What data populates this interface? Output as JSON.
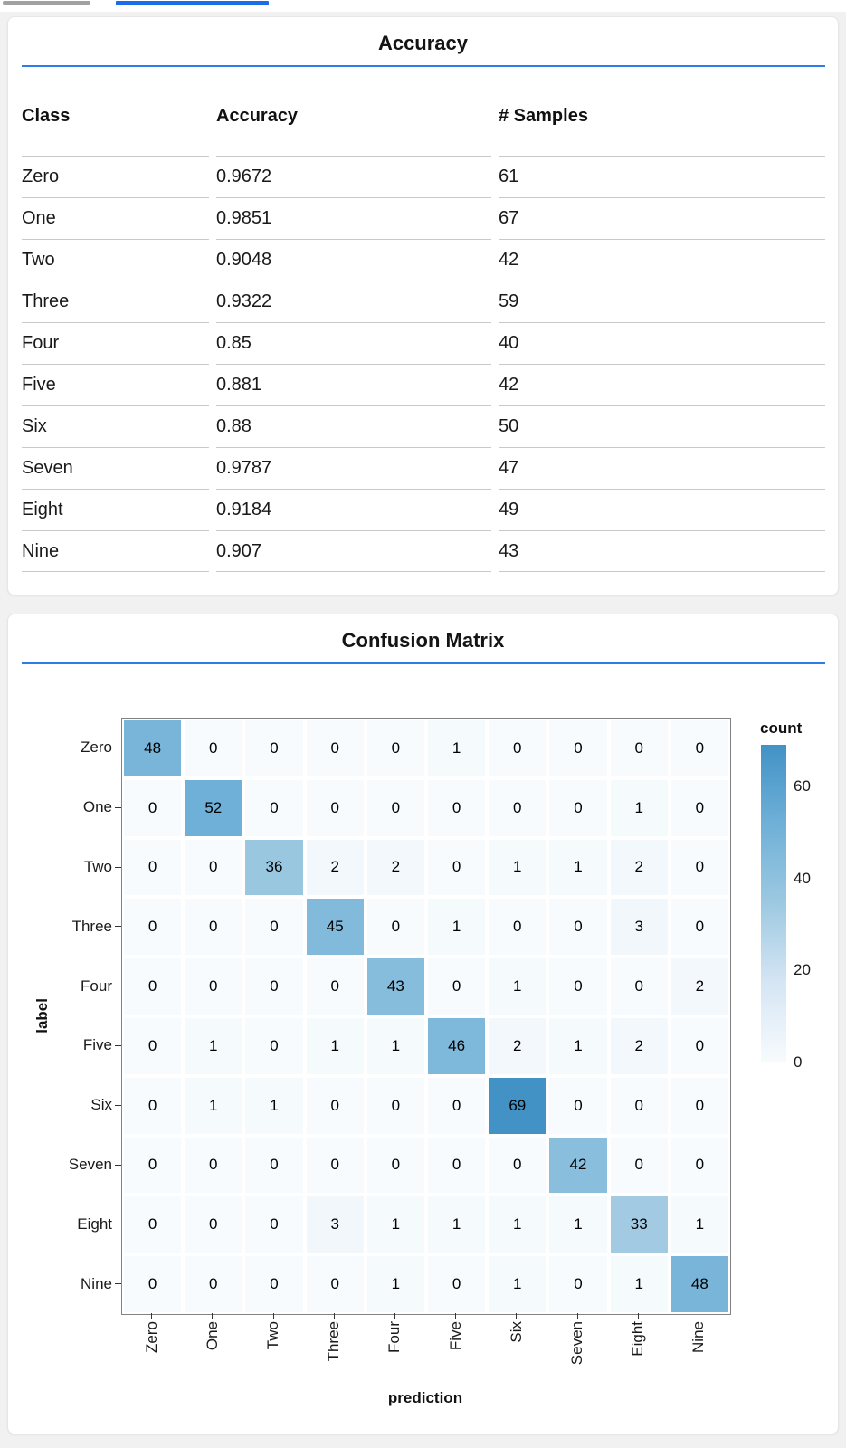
{
  "page": {
    "background": "#f2f1f1",
    "card_background": "#ffffff"
  },
  "accent": {
    "rule_color": "#2e7de5"
  },
  "top_bar": {
    "scrollbar_color": "#a1a1a1",
    "active_tab_color": "#1a6ce8"
  },
  "chart_data": [
    {
      "type": "table",
      "title": "Accuracy",
      "columns": [
        "Class",
        "Accuracy",
        "# Samples"
      ],
      "rows": [
        [
          "Zero",
          "0.9672",
          "61"
        ],
        [
          "One",
          "0.9851",
          "67"
        ],
        [
          "Two",
          "0.9048",
          "42"
        ],
        [
          "Three",
          "0.9322",
          "59"
        ],
        [
          "Four",
          "0.85",
          "40"
        ],
        [
          "Five",
          "0.881",
          "42"
        ],
        [
          "Six",
          "0.88",
          "50"
        ],
        [
          "Seven",
          "0.9787",
          "47"
        ],
        [
          "Eight",
          "0.9184",
          "49"
        ],
        [
          "Nine",
          "0.907",
          "43"
        ]
      ]
    },
    {
      "type": "heatmap",
      "title": "Confusion Matrix",
      "xlabel": "prediction",
      "ylabel": "label",
      "x_categories": [
        "Zero",
        "One",
        "Two",
        "Three",
        "Four",
        "Five",
        "Six",
        "Seven",
        "Eight",
        "Nine"
      ],
      "y_categories": [
        "Zero",
        "One",
        "Two",
        "Three",
        "Four",
        "Five",
        "Six",
        "Seven",
        "Eight",
        "Nine"
      ],
      "matrix": [
        [
          48,
          0,
          0,
          0,
          0,
          1,
          0,
          0,
          0,
          0
        ],
        [
          0,
          52,
          0,
          0,
          0,
          0,
          0,
          0,
          1,
          0
        ],
        [
          0,
          0,
          36,
          2,
          2,
          0,
          1,
          1,
          2,
          0
        ],
        [
          0,
          0,
          0,
          45,
          0,
          1,
          0,
          0,
          3,
          0
        ],
        [
          0,
          0,
          0,
          0,
          43,
          0,
          1,
          0,
          0,
          2
        ],
        [
          0,
          1,
          0,
          1,
          1,
          46,
          2,
          1,
          2,
          0
        ],
        [
          0,
          1,
          1,
          0,
          0,
          0,
          69,
          0,
          0,
          0
        ],
        [
          0,
          0,
          0,
          0,
          0,
          0,
          0,
          42,
          0,
          0
        ],
        [
          0,
          0,
          0,
          3,
          1,
          1,
          1,
          1,
          33,
          1
        ],
        [
          0,
          0,
          0,
          0,
          1,
          0,
          1,
          0,
          1,
          48
        ]
      ],
      "legend": {
        "title": "count",
        "ticks": [
          0,
          20,
          40,
          60
        ],
        "domain": [
          0,
          69
        ],
        "position": "right"
      },
      "color_scale": {
        "scheme": "blues",
        "stops": [
          "#f7fbfd",
          "#d5e5f4",
          "#9dc9e1",
          "#6fb0d7",
          "#4292c6"
        ]
      },
      "grid": false
    }
  ]
}
